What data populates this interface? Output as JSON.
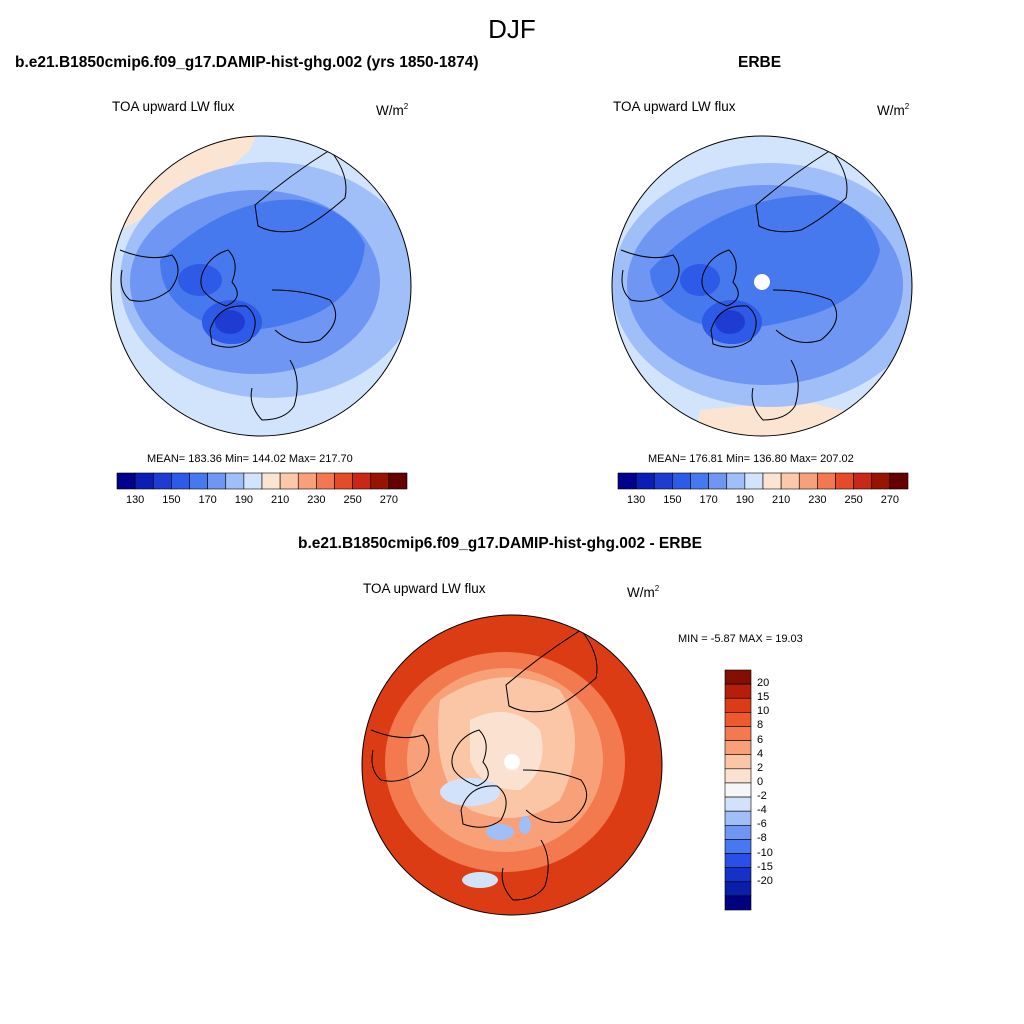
{
  "figure": {
    "title": "DJF"
  },
  "panels": {
    "model": {
      "title": "b.e21.B1850cmip6.f09_g17.DAMIP-hist-ghg.002 (yrs 1850-1874)",
      "subtitle": "TOA upward LW flux",
      "units_base": "W/m",
      "units_exp": "2",
      "stats": "MEAN= 183.36  Min= 144.02  Max= 217.70"
    },
    "obs": {
      "title": "ERBE",
      "subtitle": "TOA upward LW flux",
      "units_base": "W/m",
      "units_exp": "2",
      "stats": "MEAN= 176.81  Min= 136.80  Max= 207.02"
    },
    "diff": {
      "title": "b.e21.B1850cmip6.f09_g17.DAMIP-hist-ghg.002 - ERBE",
      "subtitle": "TOA upward LW flux",
      "units_base": "W/m",
      "units_exp": "2",
      "stats": "MIN =  -5.87 MAX =  19.03"
    }
  },
  "colors": {
    "abs_scale": [
      "#00008c",
      "#0a1eb4",
      "#1e3cd2",
      "#2d5ae6",
      "#4678ee",
      "#6e96f2",
      "#a0bef8",
      "#d2e4fc",
      "#fbe4d2",
      "#fbc8aa",
      "#f8a07c",
      "#f27850",
      "#e64b28",
      "#c82814",
      "#961400",
      "#640000"
    ],
    "diff_scale": [
      "#000080",
      "#0a1eaa",
      "#1432c8",
      "#2850e6",
      "#4678f0",
      "#7096f4",
      "#a0bef8",
      "#d2e2fa",
      "#f6f6f6",
      "#fbe2d0",
      "#fbc6a6",
      "#f8a078",
      "#f27a4e",
      "#ec5a2e",
      "#dc3c14",
      "#b41e0a",
      "#821000"
    ]
  },
  "chart_data": [
    {
      "type": "heatmap",
      "projection": "north polar stereographic",
      "title": "b.e21.B1850cmip6.f09_g17.DAMIP-hist-ghg.002 (yrs 1850-1874)",
      "variable": "TOA upward LW flux",
      "units": "W/m2",
      "mean": 183.36,
      "min": 144.02,
      "max": 217.7,
      "contour_levels": [
        130,
        140,
        150,
        160,
        170,
        180,
        190,
        200,
        210,
        220,
        230,
        240,
        250,
        260,
        270
      ],
      "colorbar_tick_labels": [
        "130",
        "150",
        "170",
        "190",
        "210",
        "230",
        "250",
        "270"
      ]
    },
    {
      "type": "heatmap",
      "projection": "north polar stereographic",
      "title": "ERBE",
      "variable": "TOA upward LW flux",
      "units": "W/m2",
      "mean": 176.81,
      "min": 136.8,
      "max": 207.02,
      "contour_levels": [
        130,
        140,
        150,
        160,
        170,
        180,
        190,
        200,
        210,
        220,
        230,
        240,
        250,
        260,
        270
      ],
      "colorbar_tick_labels": [
        "130",
        "150",
        "170",
        "190",
        "210",
        "230",
        "250",
        "270"
      ]
    },
    {
      "type": "heatmap",
      "projection": "north polar stereographic",
      "title": "b.e21.B1850cmip6.f09_g17.DAMIP-hist-ghg.002 - ERBE",
      "variable": "TOA upward LW flux",
      "units": "W/m2",
      "min": -5.87,
      "max": 19.03,
      "contour_levels": [
        -20,
        -15,
        -10,
        -8,
        -6,
        -4,
        -2,
        0,
        2,
        4,
        6,
        8,
        10,
        15,
        20
      ],
      "colorbar_tick_labels": [
        "20",
        "15",
        "10",
        "8",
        "6",
        "4",
        "2",
        "0",
        "-2",
        "-4",
        "-6",
        "-8",
        "-10",
        "-15",
        "-20"
      ]
    }
  ]
}
